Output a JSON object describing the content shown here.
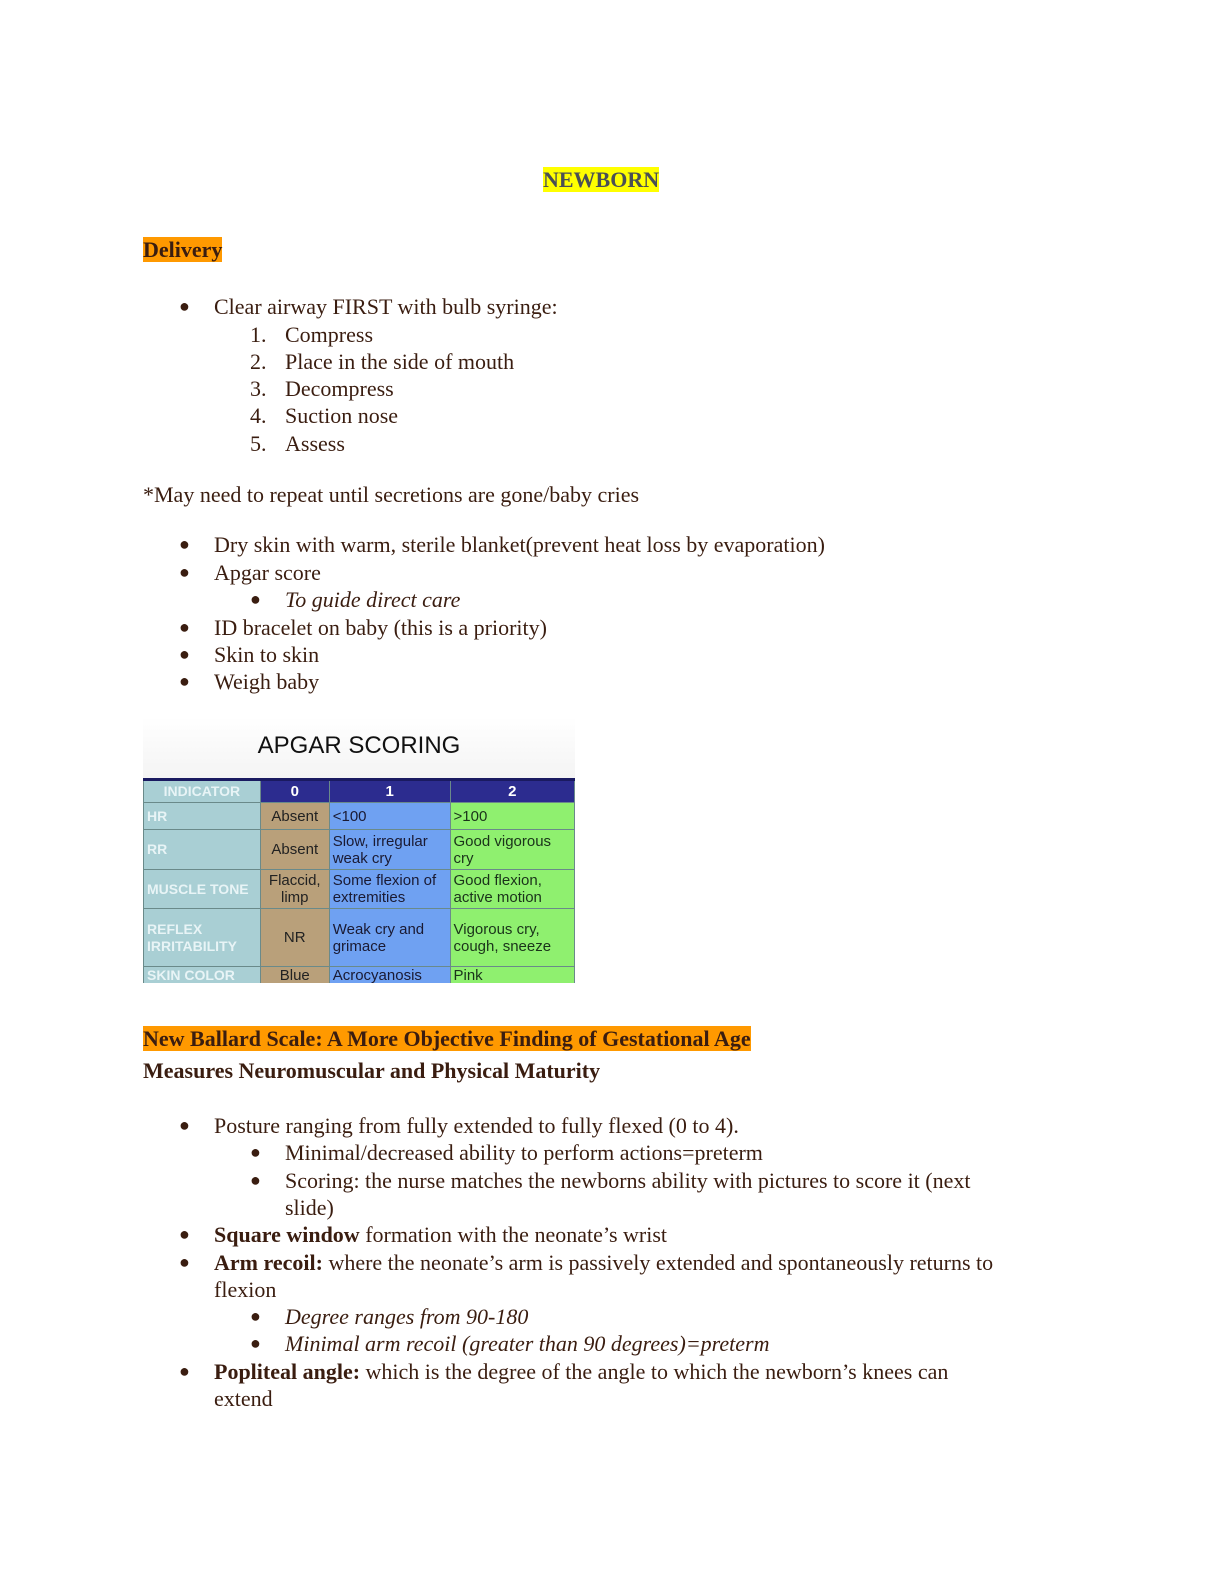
{
  "title": "NEWBORN",
  "delivery": {
    "heading": "Delivery",
    "bullet1": "Clear airway FIRST with bulb syringe:",
    "steps": [
      "Compress",
      "Place in the side of mouth",
      "Decompress",
      "Suction nose",
      "Assess"
    ],
    "note": "*May need to repeat until secretions are gone/baby cries",
    "bullets": [
      "Dry skin with warm, sterile blanket(prevent heat loss by evaporation)",
      "Apgar score",
      "ID bracelet on baby (this is a priority)",
      "Skin to skin",
      "Weigh baby"
    ],
    "apgar_sub": "To guide direct care"
  },
  "apgar": {
    "title": "APGAR SCORING",
    "headers": [
      "INDICATOR",
      "0",
      "1",
      "2"
    ],
    "rows": [
      [
        "HR",
        "Absent",
        "<100",
        ">100"
      ],
      [
        "RR",
        "Absent",
        "Slow, irregular weak cry",
        "Good vigorous cry"
      ],
      [
        "MUSCLE TONE",
        "Flaccid, limp",
        "Some flexion of extremities",
        "Good flexion, active motion"
      ],
      [
        "REFLEX IRRITABILITY",
        "NR",
        "Weak cry and grimace",
        "Vigorous cry, cough, sneeze"
      ],
      [
        "SKIN COLOR",
        "Blue",
        "Acrocyanosis",
        "Pink"
      ]
    ]
  },
  "ballard": {
    "heading": "New Ballard Scale: A More Objective Finding of Gestational Age",
    "subheading": "Measures Neuromuscular and Physical Maturity",
    "posture": "Posture ranging from fully extended to fully flexed (0 to 4).",
    "posture_sub": [
      "Minimal/decreased  ability to perform actions=preterm",
      "Scoring: the nurse matches the newborns ability with pictures to score it (next",
      "slide)"
    ],
    "square_bold": "Square window",
    "square_rest": " formation with the neonate’s wrist",
    "arm_bold": "Arm recoil:",
    "arm_rest": " where the neonate’s arm is passively extended and spontaneously returns to",
    "arm_rest2": "flexion",
    "arm_sub": [
      "Degree ranges from 90-180",
      "Minimal arm recoil (greater than 90 degrees)=preterm"
    ],
    "pop_bold": "Popliteal angle:",
    "pop_rest": " which is the degree of the angle to which the newborn’s knees can",
    "pop_rest2": "extend"
  },
  "colors": {
    "title_highlight": "#ffff00",
    "section_highlight": "#ff9900",
    "text": "#3a1d10"
  }
}
